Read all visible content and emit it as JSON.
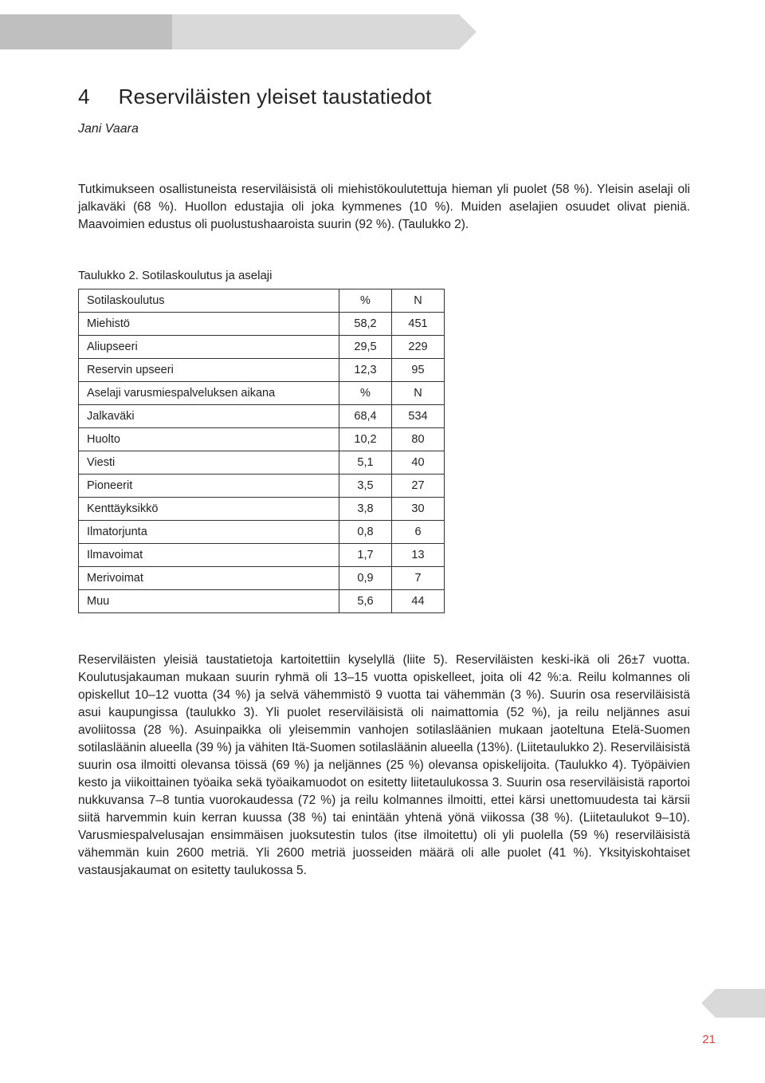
{
  "header": {
    "grey_color": "#bfbfbf",
    "lightgrey_color": "#d9d9d9"
  },
  "chapter": {
    "number": "4",
    "title": "Reserviläisten yleiset taustatiedot",
    "author": "Jani Vaara"
  },
  "paragraph1": "Tutkimukseen osallistuneista reserviläisistä oli miehistökoulutettuja hieman yli puolet (58 %). Yleisin aselaji oli jalkaväki (68 %). Huollon edustajia oli joka kymmenes (10 %). Muiden aselajien osuudet olivat pieniä. Maavoimien edustus oli puolustushaaroista suurin (92 %). (Taulukko 2).",
  "table": {
    "caption": "Taulukko 2. Sotilaskoulutus ja aselaji",
    "rows": [
      {
        "label": "Sotilaskoulutus",
        "pct": "%",
        "n": "N",
        "header": true
      },
      {
        "label": "Miehistö",
        "pct": "58,2",
        "n": "451"
      },
      {
        "label": "Aliupseeri",
        "pct": "29,5",
        "n": "229"
      },
      {
        "label": "Reservin upseeri",
        "pct": "12,3",
        "n": "95"
      },
      {
        "label": "Aselaji varusmiespalveluksen aikana",
        "pct": "%",
        "n": "N",
        "header": true
      },
      {
        "label": "Jalkaväki",
        "pct": "68,4",
        "n": "534"
      },
      {
        "label": "Huolto",
        "pct": "10,2",
        "n": "80"
      },
      {
        "label": "Viesti",
        "pct": "5,1",
        "n": "40"
      },
      {
        "label": "Pioneerit",
        "pct": "3,5",
        "n": "27"
      },
      {
        "label": "Kenttäyksikkö",
        "pct": "3,8",
        "n": "30"
      },
      {
        "label": "Ilmatorjunta",
        "pct": "0,8",
        "n": "6"
      },
      {
        "label": "Ilmavoimat",
        "pct": "1,7",
        "n": "13"
      },
      {
        "label": "Merivoimat",
        "pct": "0,9",
        "n": "7"
      },
      {
        "label": "Muu",
        "pct": "5,6",
        "n": "44"
      }
    ]
  },
  "paragraph2": "Reserviläisten yleisiä taustatietoja kartoitettiin kyselyllä (liite 5). Reserviläisten keski-ikä oli 26±7 vuotta. Koulutusjakauman mukaan suurin ryhmä oli 13–15 vuotta opiskelleet, joita oli 42 %:a. Reilu kolmannes oli opiskellut 10–12 vuotta (34 %) ja selvä vähemmistö 9 vuotta tai vähemmän (3 %). Suurin osa reserviläisistä asui kaupungissa (taulukko 3). Yli puolet reserviläisistä oli naimattomia (52 %), ja reilu neljännes asui avoliitossa (28 %). Asuinpaikka oli yleisemmin vanhojen sotilasläänien mukaan jaoteltuna Etelä-Suomen sotilasläänin alueella (39 %) ja vähiten Itä-Suomen sotilasläänin alueella (13%). (Liitetaulukko 2). Reserviläisistä suurin osa ilmoitti olevansa töissä (69 %) ja neljännes (25 %) olevansa opiskelijoita. (Taulukko 4). Työpäivien kesto ja viikoittainen työaika sekä työaikamuodot on esitetty liitetaulukossa 3. Suurin osa reserviläisistä raportoi nukkuvansa 7–8 tuntia vuorokaudessa (72 %) ja reilu kolmannes ilmoitti, ettei kärsi unettomuudesta tai kärsii siitä harvemmin kuin kerran kuussa (38 %) tai enintään yhtenä yönä viikossa (38 %). (Liitetaulukot 9–10). Varusmiespalvelusajan ensimmäisen juoksutestin tulos (itse ilmoitettu) oli yli puolella (59 %) reserviläisistä vähemmän kuin 2600 metriä. Yli 2600 metriä juosseiden määrä oli alle puolet (41 %). Yksityiskohtaiset vastausjakaumat on esitetty taulukossa 5.",
  "page_number": "21",
  "page_number_color": "#c64a3f"
}
